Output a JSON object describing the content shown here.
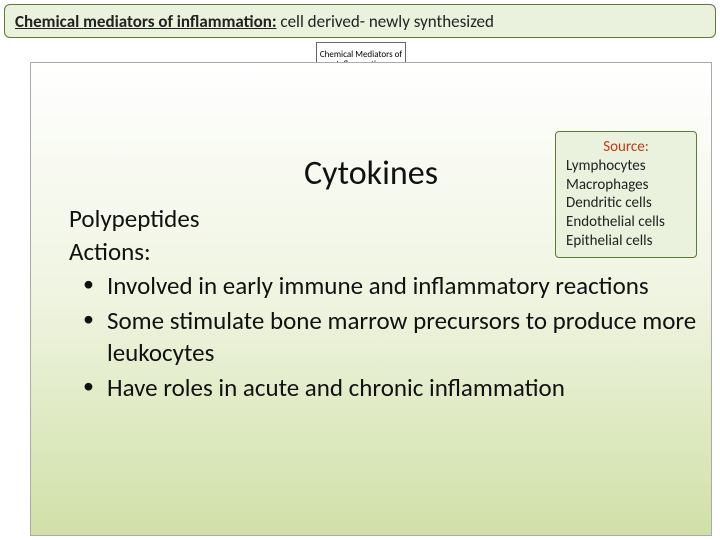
{
  "header": {
    "title_bold": "Chemical mediators of inflammation:",
    "title_sub": " cell derived- newly synthesized"
  },
  "chem_box": {
    "text": "Chemical Mediators of Inflammation"
  },
  "main_title": "Cytokines",
  "source_box": {
    "title": "Source:",
    "items": [
      "Lymphocytes",
      "Macrophages",
      "Dendritic cells",
      "Endothelial cells",
      "Epithelial cells"
    ]
  },
  "content": {
    "lead1": "Polypeptides",
    "lead2": "Actions:",
    "bullets": [
      "Involved in early immune and inflammatory reactions",
      "Some stimulate bone marrow precursors to produce more leukocytes",
      "Have roles in acute and chronic inflammation"
    ]
  },
  "colors": {
    "header_bg": "#eaf2dd",
    "header_border": "#5a7a3a",
    "panel_grad_top": "#ffffff",
    "panel_grad_mid": "#eff4e0",
    "panel_grad_bot": "#d0e0a8",
    "source_title": "#bb3a1a"
  }
}
